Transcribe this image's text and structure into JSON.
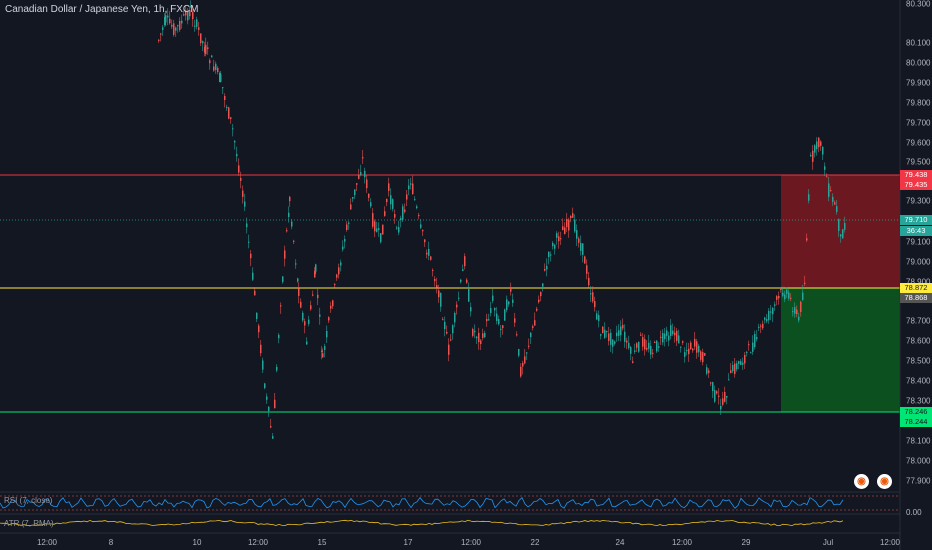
{
  "title": "Canadian Dollar / Japanese Yen, 1h, FXCM",
  "price_axis": [
    "80.300",
    "80.100",
    "80.000",
    "79.900",
    "79.800",
    "79.700",
    "79.600",
    "79.500",
    "79.300",
    "79.100",
    "79.000",
    "78.900",
    "78.700",
    "78.600",
    "78.500",
    "78.400",
    "78.300",
    "78.100",
    "78.000",
    "77.900"
  ],
  "price_tags": {
    "stop_1": "79.438",
    "stop_2": "79.435",
    "current_price": "79.710",
    "countdown": "36:43",
    "entry_1": "78.872",
    "entry_2": "78.868",
    "target_1": "78.246",
    "target_2": "78.244"
  },
  "time_axis": [
    "12:00",
    "8",
    "10",
    "12:00",
    "15",
    "17",
    "12:00",
    "22",
    "24",
    "12:00",
    "29",
    "Jul",
    "12:00"
  ],
  "rsi": {
    "label": "RSI (7, close)",
    "value": "0.00"
  },
  "atr": {
    "label": "ATR (7, RMA)"
  },
  "colors": {
    "up": "#26a69a",
    "down": "#ef5350",
    "stop_line": "#f23645",
    "entry_line": "#ffeb3b",
    "target_line": "#00e676"
  },
  "icons": [
    "logo-badge-icon",
    "logo-badge-icon"
  ]
}
